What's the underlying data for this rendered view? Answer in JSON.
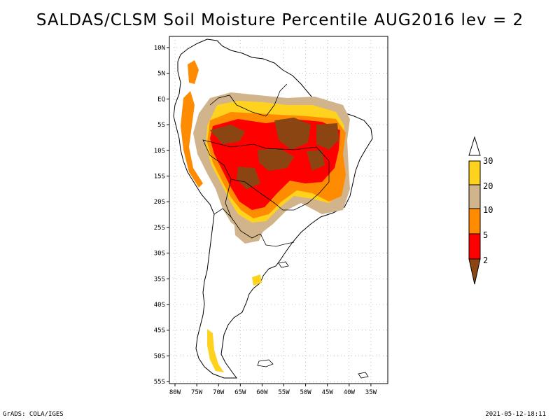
{
  "title": "SALDAS/CLSM Soil Moisture Percentile AUG2016 lev = 2",
  "footer": {
    "left": "GrADS: COLA/IGES",
    "right": "2021-05-12-18:11"
  },
  "axes": {
    "lat_labels": [
      "10N",
      "5N",
      "EQ",
      "5S",
      "10S",
      "15S",
      "20S",
      "25S",
      "30S",
      "35S",
      "40S",
      "45S",
      "50S",
      "55S"
    ],
    "lon_labels": [
      "80W",
      "75W",
      "70W",
      "65W",
      "60W",
      "55W",
      "50W",
      "45W",
      "40W",
      "35W"
    ]
  },
  "colorbar": {
    "labels": [
      "30",
      "20",
      "10",
      "5",
      "2"
    ],
    "colors": {
      "above30": "#ffffff",
      "20_30": "#ffd21e",
      "10_20": "#d2b48c",
      "5_10": "#ff8c00",
      "2_5": "#ff0000",
      "below2": "#8b4513"
    }
  }
}
